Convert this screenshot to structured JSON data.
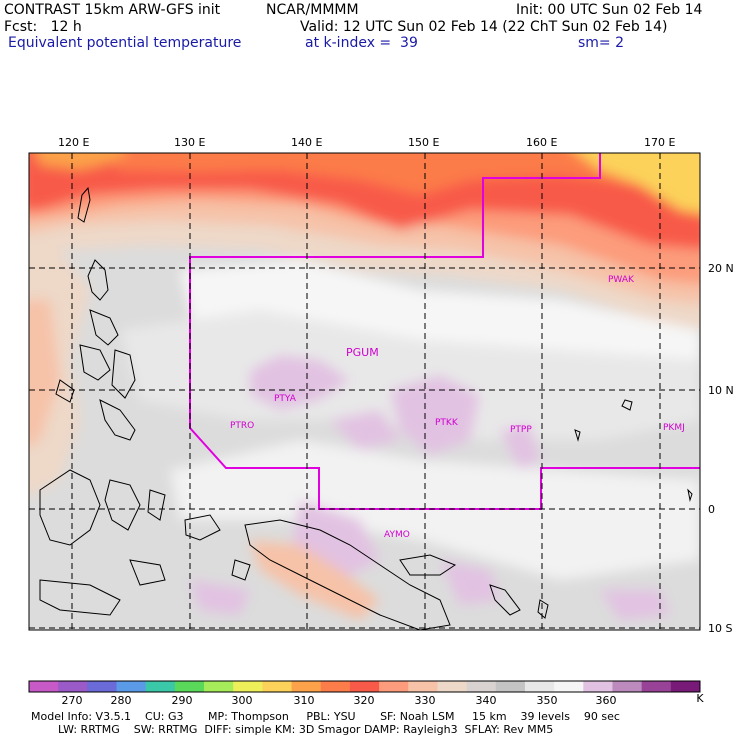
{
  "header": {
    "model_line": "CONTRAST 15km ARW-GFS init",
    "org": "NCAR/MMMM",
    "init": "Init: 00 UTC Sun 02 Feb 14",
    "fcst": "Fcst:   12 h",
    "valid": "Valid: 12 UTC Sun 02 Feb 14 (22 ChT Sun 02 Feb 14)",
    "field": "Equivalent potential temperature",
    "level": "at k-index =  39",
    "smoothing": "sm= 2"
  },
  "axes": {
    "lon_labels": [
      "120 E",
      "130 E",
      "140 E",
      "150 E",
      "160 E",
      "170 E"
    ],
    "lat_labels": [
      "20 N",
      "10 N",
      "0",
      "10 S"
    ]
  },
  "stations": [
    "PWAK",
    "PGUM",
    "PTYA",
    "PTRO",
    "PTKK",
    "PTPP",
    "PKMJ",
    "AYMO"
  ],
  "colorbar": {
    "labels": [
      "270",
      "280",
      "290",
      "300",
      "310",
      "320",
      "330",
      "340",
      "350",
      "360",
      "K"
    ],
    "colors": [
      "#c85ac8",
      "#9a5ac8",
      "#6a6ad8",
      "#5a9ae6",
      "#3ac8a8",
      "#5ad85a",
      "#a6ec5a",
      "#eef05a",
      "#fcd25a",
      "#fca24a",
      "#fc7c4a",
      "#f85a4a",
      "#fc9c7c",
      "#f6c2a8",
      "#eed8c8",
      "#d8d2d0",
      "#c4c4c4",
      "#e8e8e8",
      "#f6f6f6",
      "#e2c2e2",
      "#bc8abc",
      "#984298",
      "#781a78"
    ]
  },
  "footer": {
    "line1": "Model Info: V3.5.1    CU: G3       MP: Thompson     PBL: YSU       SF: Noah LSM     15 km    39 levels    90 sec",
    "line2": "LW: RRTMG    SW: RRTMG  DIFF: simple KM: 3D Smagor DAMP: Rayleigh3  SFLAY: Rev MM5"
  }
}
